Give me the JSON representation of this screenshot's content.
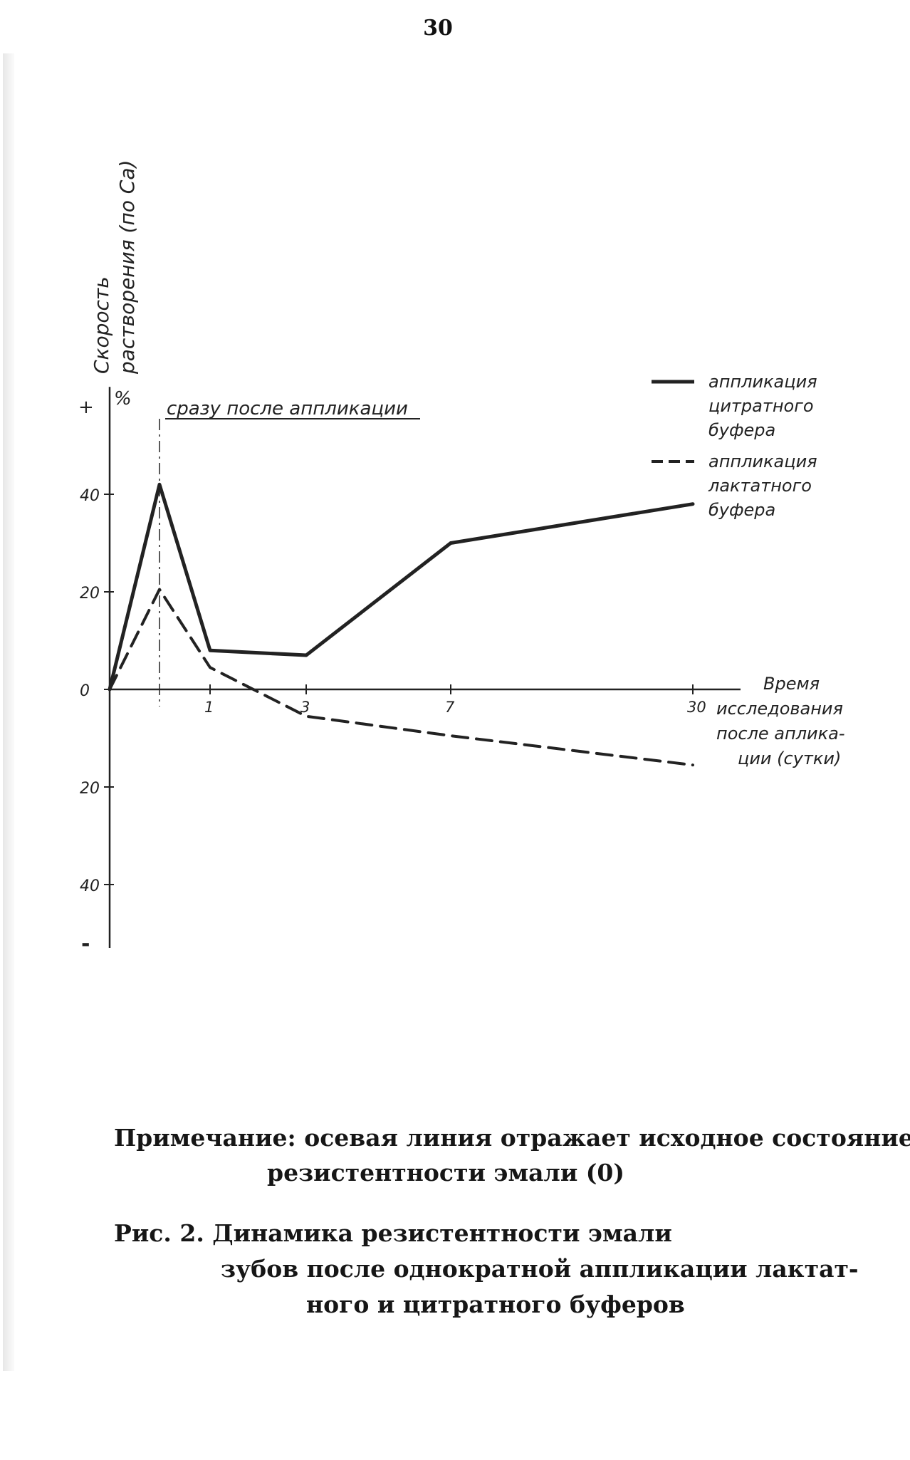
{
  "page_number": "30",
  "chart_data": {
    "type": "line",
    "ylabel_line1": "Скорость",
    "ylabel_line2": "растворения (по Ca)",
    "y_unit": "%",
    "y_plus_sign": "+",
    "y_minus_sign": "-",
    "xlabel": [
      "Время",
      "исследования",
      "после аплика-",
      "ции (сутки)"
    ],
    "x_ticks": [
      "1",
      "3",
      "7",
      "30"
    ],
    "y_ticks": [
      {
        "value": 40,
        "label": "40"
      },
      {
        "value": 20,
        "label": "20"
      },
      {
        "value": 0,
        "label": "0"
      },
      {
        "value": -20,
        "label": "20"
      },
      {
        "value": -40,
        "label": "40"
      }
    ],
    "ylim": [
      -53,
      62
    ],
    "annotation": "сразу после аппликации",
    "series": [
      {
        "name": "аппликация цитратного буфера",
        "style": "solid",
        "points": [
          [
            "0",
            0
          ],
          [
            "сразу",
            42
          ],
          [
            "1",
            8
          ],
          [
            "3",
            7
          ],
          [
            "7",
            30
          ],
          [
            "30",
            38
          ]
        ]
      },
      {
        "name": "аппликация лактатного буфера",
        "style": "dashed",
        "points": [
          [
            "0",
            0
          ],
          [
            "сразу",
            20.5
          ],
          [
            "1",
            4.5
          ],
          [
            "3",
            -5.5
          ],
          [
            "7",
            -9.5
          ],
          [
            "30",
            -15.5
          ]
        ]
      }
    ],
    "legend": [
      {
        "lines": [
          "аппликация",
          "цитратного",
          "буфера"
        ],
        "style": "solid"
      },
      {
        "lines": [
          "аппликация",
          "лактатного",
          "буфера"
        ],
        "style": "dashed"
      }
    ],
    "colors": {
      "ink": "#222222"
    }
  },
  "note": {
    "line1": "Примечание: осевая линия отражает исходное состояние",
    "line2": "резистентности эмали (0)"
  },
  "caption": {
    "line1": "Рис. 2. Динамика резистентности эмали",
    "line2": "зубов после однократной аппликации лактат-",
    "line3": "ного и цитратного буферов"
  }
}
